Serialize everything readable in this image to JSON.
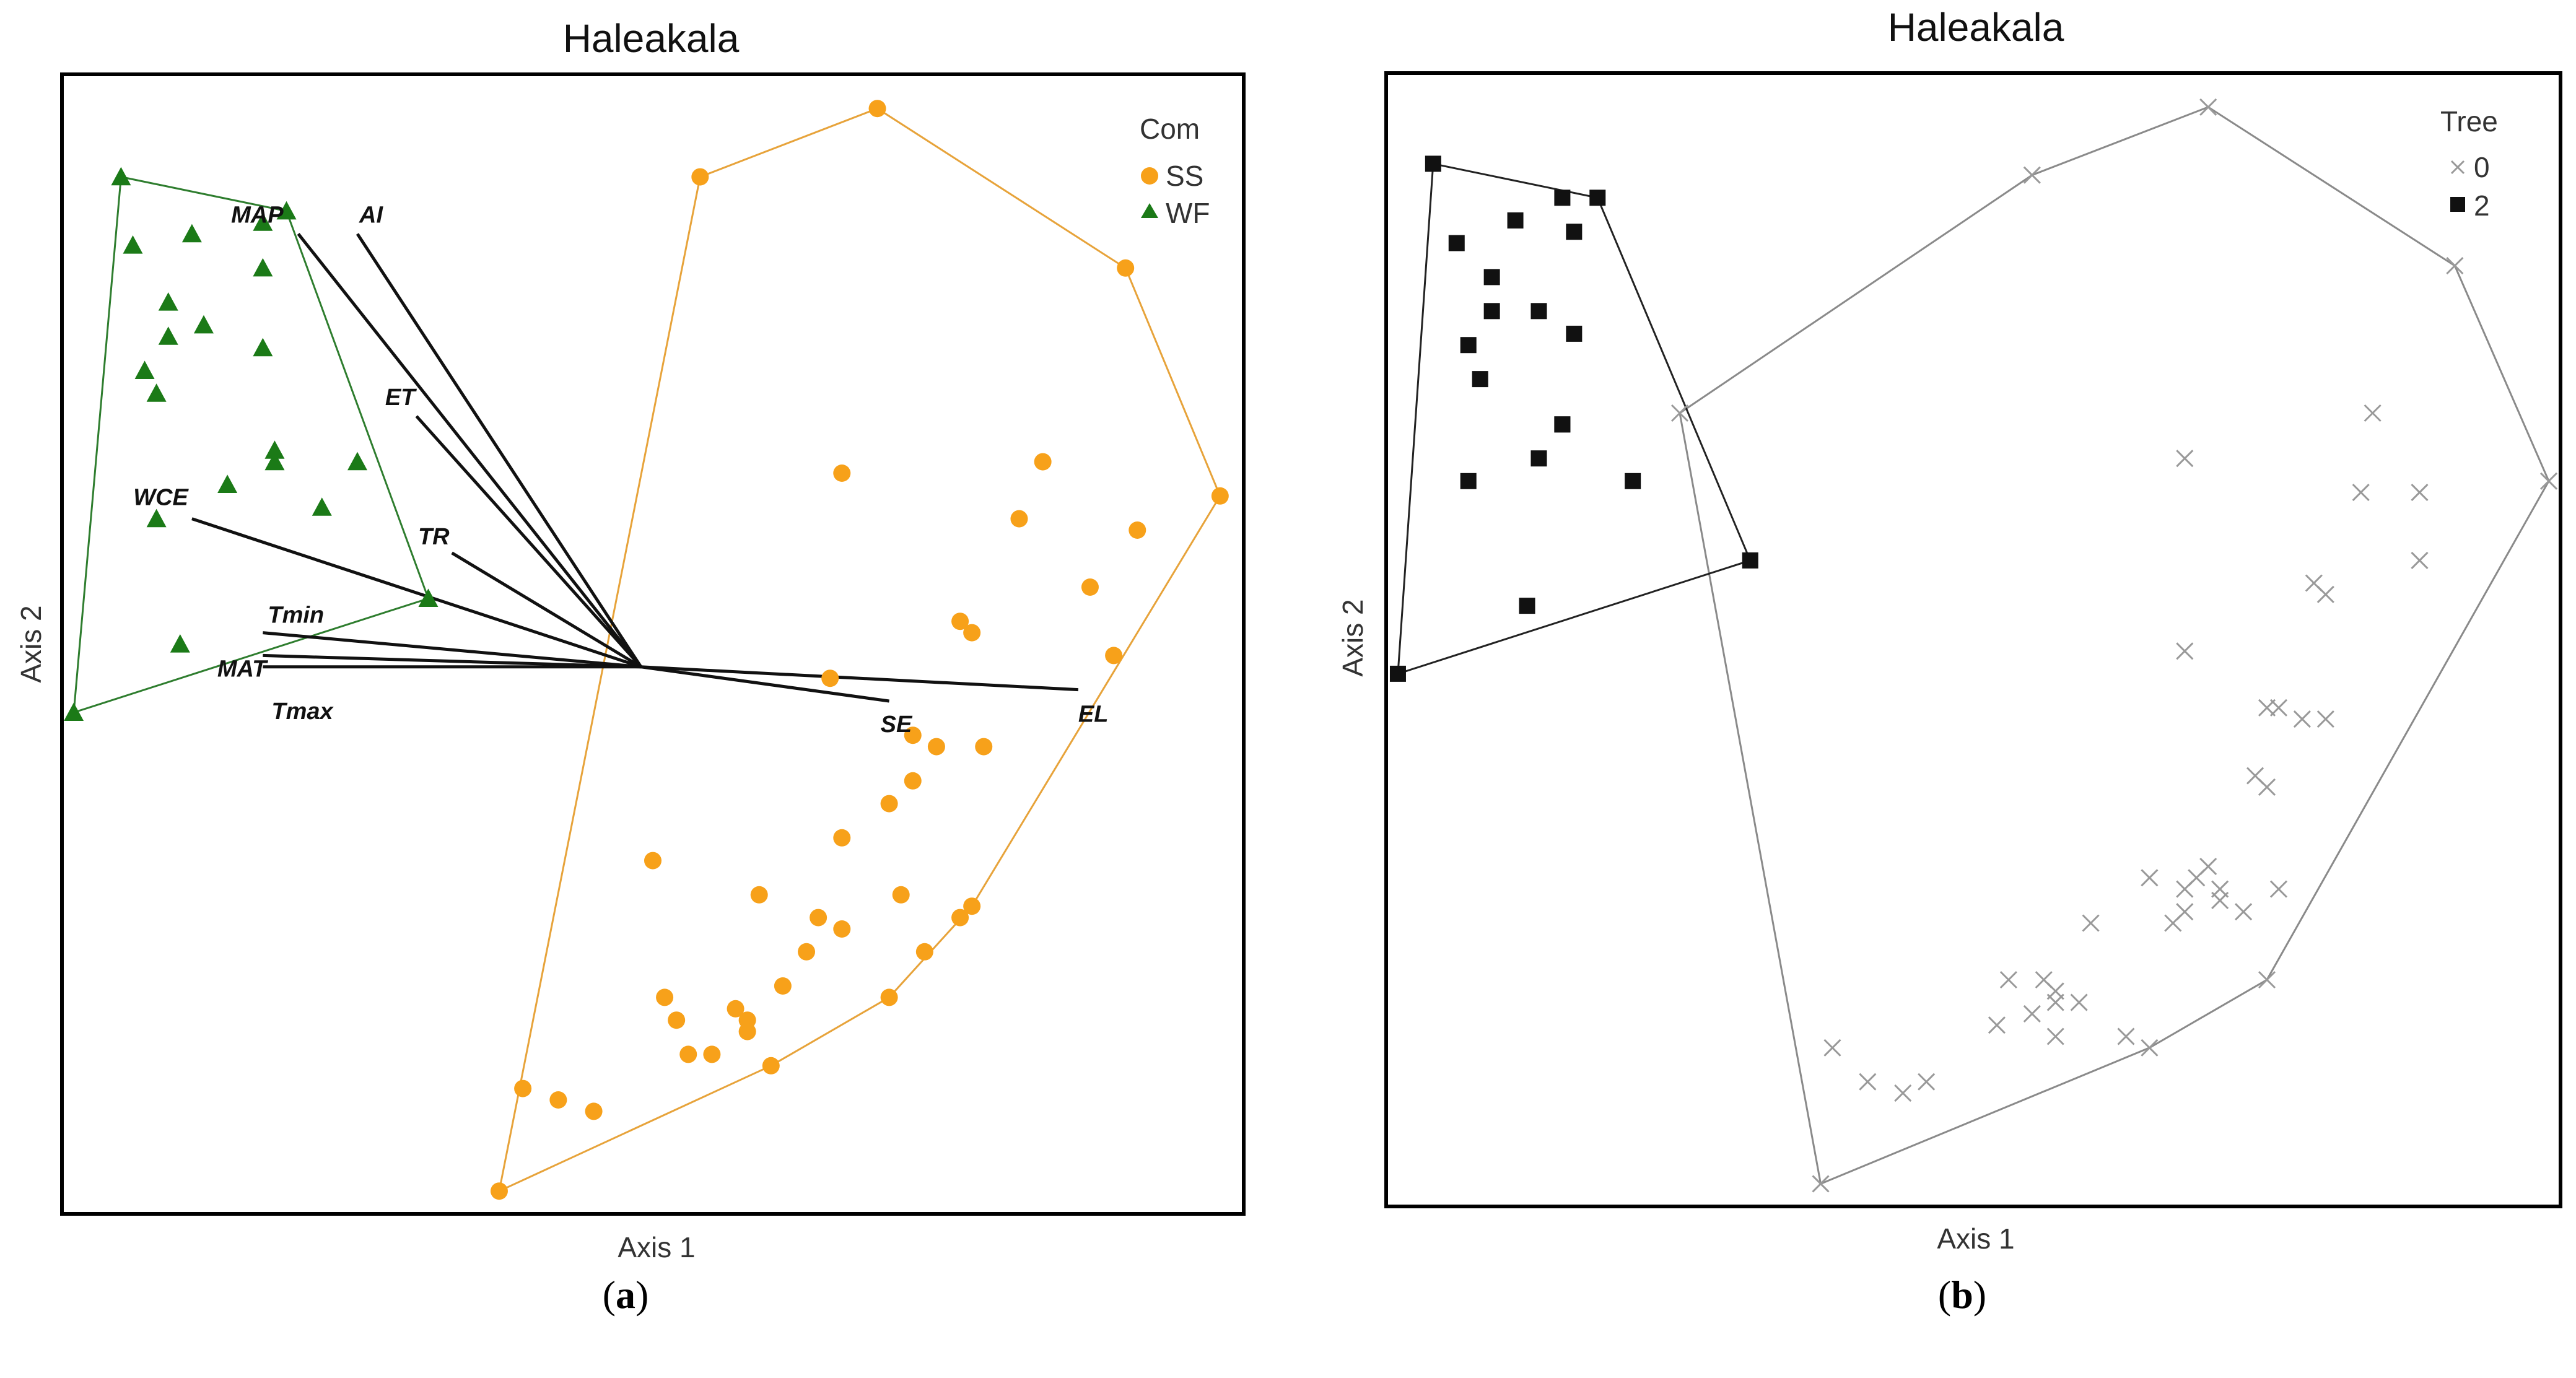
{
  "chart_data": [
    {
      "type": "scatter",
      "panel_label": "a",
      "title": "Haleakala",
      "xlabel": "Axis 1",
      "ylabel": "Axis 2",
      "xlim": [
        0,
        100
      ],
      "ylim": [
        0,
        100
      ],
      "grid": false,
      "legend": {
        "title": "Com",
        "position": "top-right"
      },
      "series": [
        {
          "name": "SS",
          "marker": "circle",
          "color": "#F7A11A",
          "hull_color": "#E7A33A",
          "points": [
            [
              69,
              97
            ],
            [
              54,
              91
            ],
            [
              90,
              83
            ],
            [
              98,
              63
            ],
            [
              83,
              66
            ],
            [
              91,
              60
            ],
            [
              66,
              65
            ],
            [
              81,
              61
            ],
            [
              87,
              55
            ],
            [
              89,
              49
            ],
            [
              76,
              52
            ],
            [
              77,
              51
            ],
            [
              65,
              47
            ],
            [
              72,
              42
            ],
            [
              74,
              41
            ],
            [
              78,
              41
            ],
            [
              72,
              38
            ],
            [
              70,
              36
            ],
            [
              66,
              33
            ],
            [
              59,
              28
            ],
            [
              77,
              27
            ],
            [
              76,
              26
            ],
            [
              64,
              26
            ],
            [
              50,
              31
            ],
            [
              71,
              28
            ],
            [
              66,
              25
            ],
            [
              73,
              23
            ],
            [
              63,
              23
            ],
            [
              61,
              20
            ],
            [
              51,
              19
            ],
            [
              52,
              17
            ],
            [
              57,
              18
            ],
            [
              58,
              17
            ],
            [
              55,
              14
            ],
            [
              58,
              16
            ],
            [
              70,
              19
            ],
            [
              60,
              13
            ],
            [
              53,
              14
            ],
            [
              39,
              11
            ],
            [
              45,
              9
            ],
            [
              42,
              10
            ],
            [
              37,
              2
            ]
          ]
        },
        {
          "name": "WF",
          "marker": "triangle",
          "color": "#1B7A17",
          "hull_color": "#2E7D2E",
          "points": [
            [
              5,
              91
            ],
            [
              19,
              88
            ],
            [
              17,
              87
            ],
            [
              11,
              86
            ],
            [
              17,
              83
            ],
            [
              6,
              85
            ],
            [
              9,
              80
            ],
            [
              12,
              78
            ],
            [
              9,
              77
            ],
            [
              17,
              76
            ],
            [
              7,
              74
            ],
            [
              8,
              72
            ],
            [
              25,
              66
            ],
            [
              18,
              66
            ],
            [
              18,
              67
            ],
            [
              14,
              64
            ],
            [
              22,
              62
            ],
            [
              8,
              61
            ],
            [
              31,
              54
            ],
            [
              10,
              50
            ],
            [
              1,
              44
            ]
          ]
        }
      ],
      "vectors": [
        {
          "label": "MAP",
          "from": [
            49,
            48
          ],
          "to": [
            20,
            86
          ]
        },
        {
          "label": "AI",
          "from": [
            49,
            48
          ],
          "to": [
            25,
            86
          ]
        },
        {
          "label": "ET",
          "from": [
            49,
            48
          ],
          "to": [
            30,
            70
          ]
        },
        {
          "label": "TR",
          "from": [
            49,
            48
          ],
          "to": [
            33,
            58
          ]
        },
        {
          "label": "WCE",
          "from": [
            49,
            48
          ],
          "to": [
            11,
            61
          ]
        },
        {
          "label": "Tmin",
          "from": [
            49,
            48
          ],
          "to": [
            17,
            51
          ]
        },
        {
          "label": "MAT",
          "from": [
            49,
            48
          ],
          "to": [
            17,
            49
          ]
        },
        {
          "label": "Tmax",
          "from": [
            49,
            48
          ],
          "to": [
            17,
            48
          ]
        },
        {
          "label": "SE",
          "from": [
            49,
            48
          ],
          "to": [
            70,
            45
          ]
        },
        {
          "label": "EL",
          "from": [
            49,
            48
          ],
          "to": [
            86,
            46
          ]
        }
      ]
    },
    {
      "type": "scatter",
      "panel_label": "b",
      "title": "Haleakala",
      "xlabel": "Axis 1",
      "ylabel": "Axis 2",
      "xlim": [
        0,
        100
      ],
      "ylim": [
        0,
        100
      ],
      "grid": false,
      "legend": {
        "title": "Tree",
        "position": "top-right"
      },
      "series": [
        {
          "name": "0",
          "marker": "x",
          "color": "#999999",
          "hull_color": "#8A8A8A",
          "points": [
            [
              70,
              97
            ],
            [
              55,
              91
            ],
            [
              91,
              83
            ],
            [
              99,
              64
            ],
            [
              84,
              70
            ],
            [
              68,
              66
            ],
            [
              83,
              63
            ],
            [
              88,
              63
            ],
            [
              88,
              57
            ],
            [
              79,
              55
            ],
            [
              80,
              54
            ],
            [
              68,
              49
            ],
            [
              75,
              44
            ],
            [
              76,
              44
            ],
            [
              78,
              43
            ],
            [
              80,
              43
            ],
            [
              74,
              38
            ],
            [
              75,
              37
            ],
            [
              65,
              29
            ],
            [
              68,
              28
            ],
            [
              69,
              29
            ],
            [
              70,
              30
            ],
            [
              67,
              25
            ],
            [
              68,
              26
            ],
            [
              71,
              27
            ],
            [
              71,
              28
            ],
            [
              73,
              26
            ],
            [
              76,
              28
            ],
            [
              60,
              25
            ],
            [
              56,
              20
            ],
            [
              53,
              20
            ],
            [
              52,
              16
            ],
            [
              55,
              17
            ],
            [
              59,
              18
            ],
            [
              57,
              19
            ],
            [
              57,
              18
            ],
            [
              41,
              11
            ],
            [
              44,
              10
            ],
            [
              46,
              11
            ],
            [
              57,
              15
            ],
            [
              63,
              15
            ],
            [
              65,
              14
            ],
            [
              75,
              20
            ],
            [
              38,
              14
            ],
            [
              37,
              2
            ],
            [
              25,
              70
            ]
          ]
        },
        {
          "name": "2",
          "marker": "square",
          "color": "#111111",
          "hull_color": "#222222",
          "points": [
            [
              4,
              92
            ],
            [
              18,
              89
            ],
            [
              15,
              89
            ],
            [
              11,
              87
            ],
            [
              16,
              86
            ],
            [
              6,
              85
            ],
            [
              9,
              82
            ],
            [
              9,
              79
            ],
            [
              13,
              79
            ],
            [
              16,
              77
            ],
            [
              7,
              76
            ],
            [
              8,
              73
            ],
            [
              15,
              69
            ],
            [
              15,
              69
            ],
            [
              13,
              66
            ],
            [
              21,
              64
            ],
            [
              7,
              64
            ],
            [
              12,
              53
            ],
            [
              31,
              57
            ],
            [
              1,
              47
            ]
          ]
        }
      ]
    }
  ],
  "panel_labels": [
    "(a)",
    "(b)"
  ]
}
